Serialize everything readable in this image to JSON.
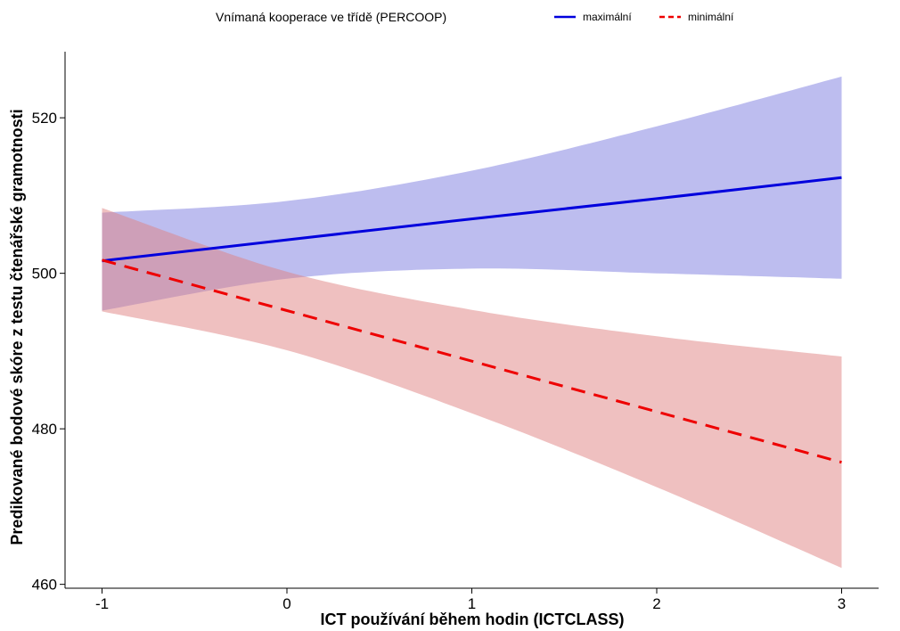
{
  "chart_data": {
    "type": "line",
    "xlabel": "ICT používání během hodin (ICTCLASS)",
    "ylabel": "Predikované bodové skóre z testu čtenářské gramotnosti",
    "xlim": [
      -1.2,
      3.2
    ],
    "ylim": [
      459.5,
      528.5
    ],
    "xticks": [
      -1,
      0,
      1,
      2,
      3
    ],
    "yticks": [
      460,
      480,
      500,
      520
    ],
    "grid": false,
    "legend": {
      "title": "Vnímaná kooperace ve třídě  (PERCOOP)",
      "position": "top",
      "entries": [
        "maximální",
        "minimální"
      ]
    },
    "series": [
      {
        "name": "maximální",
        "color": "#0000dd",
        "band_color": "#7b7be0",
        "line_style": "solid",
        "x": [
          -1,
          0,
          1,
          2,
          3
        ],
        "y": [
          501.6,
          504.3,
          507.0,
          509.6,
          512.3
        ],
        "lower": [
          495.2,
          499.3,
          500.6,
          500.0,
          499.3
        ],
        "upper": [
          507.8,
          509.3,
          513.2,
          518.9,
          525.3
        ]
      },
      {
        "name": "minimální",
        "color": "#ee0000",
        "band_color": "#e08282",
        "line_style": "dashed",
        "x": [
          -1,
          0,
          1,
          2,
          3
        ],
        "y": [
          501.7,
          495.2,
          488.7,
          482.2,
          475.7
        ],
        "lower": [
          495.1,
          490.1,
          482.0,
          472.5,
          462.1
        ],
        "upper": [
          508.4,
          500.2,
          495.3,
          491.9,
          489.3
        ]
      }
    ]
  }
}
